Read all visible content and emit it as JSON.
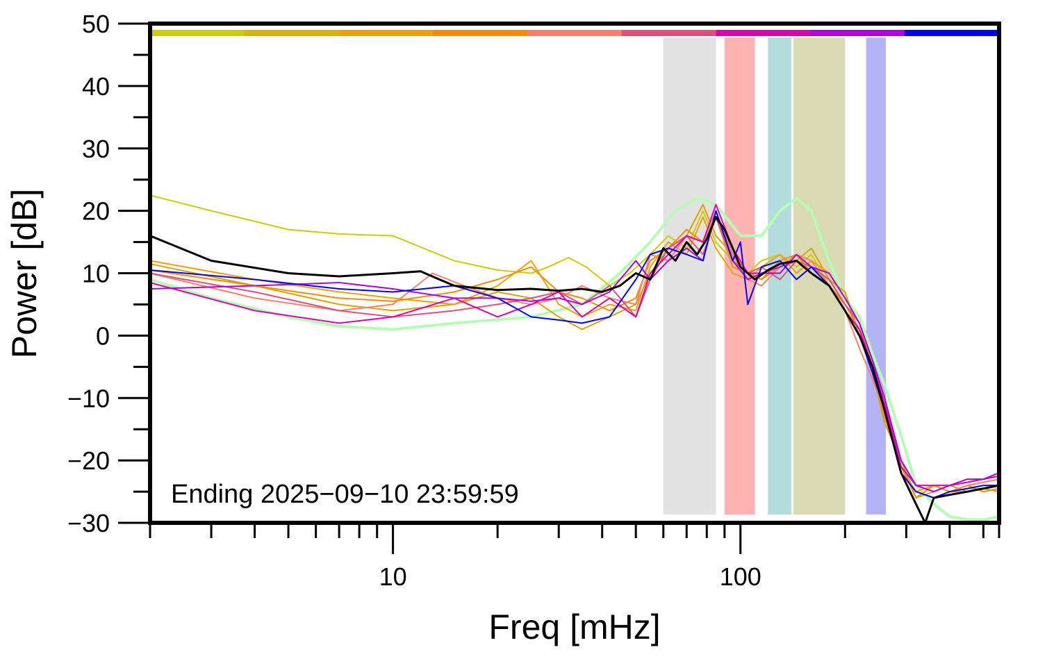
{
  "chart_data": {
    "type": "line",
    "xlabel": "Freq [mHz]",
    "ylabel": "Power [dB]",
    "xscale": "log",
    "xlim": [
      2,
      555
    ],
    "ylim": [
      -30,
      50
    ],
    "x_tick_labels": [
      {
        "value": 10,
        "label": "10"
      },
      {
        "value": 100,
        "label": "100"
      }
    ],
    "y_tick_labels": [
      {
        "value": 50,
        "label": "50"
      },
      {
        "value": 40,
        "label": "40"
      },
      {
        "value": 30,
        "label": "30"
      },
      {
        "value": 20,
        "label": "20"
      },
      {
        "value": 10,
        "label": "10"
      },
      {
        "value": 0,
        "label": "0"
      },
      {
        "value": -10,
        "label": "−10"
      },
      {
        "value": -20,
        "label": "−20"
      },
      {
        "value": -30,
        "label": "−30"
      }
    ],
    "annotation": "Ending 2025−09−10 23:59:59",
    "grid": false,
    "legend": "none",
    "top_color_bar": [
      "#cccc00",
      "#d9b300",
      "#f0a000",
      "#f58c00",
      "#ff7f66",
      "#e0507a",
      "#e000b0",
      "#b000e0",
      "#0000ff"
    ],
    "shaded_bands": [
      {
        "from": 60,
        "to": 85,
        "color": "#e2e2e2"
      },
      {
        "from": 90,
        "to": 110,
        "color": "#ffb3b3"
      },
      {
        "from": 120,
        "to": 140,
        "color": "#b3dcdc"
      },
      {
        "from": 142,
        "to": 200,
        "color": "#dadab3"
      },
      {
        "from": 230,
        "to": 262,
        "color": "#b3b3f5"
      }
    ],
    "series": [
      {
        "color": "#b3ffb3",
        "width": 4,
        "x": [
          2,
          3,
          5,
          7,
          10,
          15,
          25,
          35,
          45,
          55,
          65,
          75,
          85,
          100,
          115,
          130,
          145,
          160,
          180,
          200,
          220,
          240,
          260,
          290,
          320,
          360,
          400,
          450,
          500,
          555
        ],
        "y": [
          9,
          6,
          3,
          1.5,
          1,
          2,
          3,
          5,
          10,
          15,
          20,
          22,
          21,
          16,
          16,
          20,
          22,
          20,
          12,
          6,
          3,
          -3,
          -8,
          -16,
          -24,
          -27,
          -29,
          -29.5,
          -29.5,
          -29
        ]
      },
      {
        "color": "#cccc00",
        "width": 2,
        "x": [
          2,
          3,
          5,
          7,
          10,
          15,
          20,
          25,
          28,
          32,
          36,
          42,
          48,
          55,
          62,
          70,
          78,
          85,
          95,
          105,
          115,
          130,
          145,
          160,
          180,
          200,
          220,
          240,
          260,
          290,
          320,
          360,
          400,
          450,
          500,
          555
        ],
        "y": [
          22.5,
          20,
          17,
          16.3,
          16,
          12,
          10.5,
          10,
          11,
          12.5,
          11,
          8,
          10,
          13,
          16,
          14,
          20,
          15,
          12,
          10,
          12,
          13,
          11,
          13,
          8,
          5,
          1,
          -5,
          -13,
          -21,
          -25,
          -26,
          -25,
          -24.5,
          -24.5,
          -24
        ]
      },
      {
        "color": "#d9a300",
        "width": 2,
        "x": [
          2,
          4,
          7,
          10,
          15,
          20,
          25,
          30,
          35,
          42,
          50,
          55,
          62,
          70,
          78,
          85,
          95,
          105,
          115,
          130,
          145,
          160,
          180,
          200,
          220,
          240,
          260,
          290,
          320,
          360,
          400,
          450,
          500,
          555
        ],
        "y": [
          11.5,
          8,
          5,
          4,
          5,
          7,
          6,
          3,
          1,
          3,
          5,
          10,
          14,
          16,
          21,
          16,
          13,
          10,
          9,
          11,
          12,
          14,
          9,
          7,
          0,
          -6,
          -14,
          -20,
          -26,
          -25,
          -24,
          -25,
          -24.5,
          -25
        ]
      },
      {
        "color": "#f0a000",
        "width": 2,
        "x": [
          2,
          4,
          7,
          10,
          15,
          20,
          25,
          30,
          35,
          42,
          50,
          55,
          62,
          70,
          78,
          85,
          95,
          105,
          115,
          130,
          145,
          160,
          180,
          200,
          220,
          240,
          260,
          290,
          320,
          360,
          400,
          450,
          500,
          555
        ],
        "y": [
          12,
          9,
          7,
          6,
          5,
          8,
          12,
          5,
          3,
          5,
          4,
          11,
          15,
          13,
          19,
          14,
          10,
          9,
          11,
          13,
          10,
          12,
          10,
          6,
          2,
          -5,
          -12,
          -22,
          -25,
          -24,
          -25,
          -25,
          -24.5,
          -24
        ]
      },
      {
        "color": "#f58c00",
        "width": 2,
        "x": [
          2,
          4,
          7,
          10,
          15,
          20,
          25,
          30,
          35,
          42,
          50,
          55,
          62,
          70,
          78,
          85,
          95,
          105,
          115,
          130,
          145,
          160,
          180,
          200,
          220,
          240,
          260,
          290,
          320,
          360,
          400,
          450,
          500,
          555
        ],
        "y": [
          10.5,
          8,
          6,
          5.5,
          7,
          9,
          11,
          7,
          6,
          4,
          6,
          12,
          14,
          17,
          15,
          19,
          11,
          10,
          9,
          12,
          13,
          10,
          8,
          5,
          1,
          -6,
          -13,
          -21,
          -26,
          -24,
          -25,
          -24,
          -25,
          -24.5
        ]
      },
      {
        "color": "#ff7f66",
        "width": 2,
        "x": [
          2,
          4,
          7,
          10,
          13,
          16,
          20,
          25,
          30,
          35,
          42,
          50,
          55,
          62,
          70,
          78,
          85,
          95,
          105,
          115,
          130,
          145,
          160,
          180,
          200,
          220,
          240,
          260,
          290,
          320,
          360,
          400,
          450,
          500,
          555
        ],
        "y": [
          10,
          6,
          4,
          5,
          10,
          8,
          6,
          5,
          6,
          8,
          6,
          5,
          13,
          12,
          16,
          15,
          20,
          13,
          9,
          8,
          11,
          13,
          12,
          8,
          4,
          -2,
          -7,
          -12,
          -22,
          -25,
          -26,
          -25,
          -24,
          -23.5,
          -23
        ]
      },
      {
        "color": "#e0507a",
        "width": 2,
        "x": [
          2,
          4,
          7,
          10,
          15,
          20,
          25,
          30,
          35,
          42,
          50,
          55,
          62,
          70,
          78,
          85,
          95,
          105,
          115,
          130,
          145,
          160,
          180,
          200,
          220,
          240,
          260,
          290,
          320,
          360,
          400,
          450,
          500,
          555
        ],
        "y": [
          10,
          7,
          4,
          3,
          4,
          5,
          6,
          7,
          5,
          8,
          3,
          9,
          14,
          16,
          13,
          19,
          12,
          10,
          11,
          9,
          12,
          11,
          9,
          5,
          2,
          -4,
          -11,
          -20,
          -24,
          -25,
          -24,
          -23.5,
          -23,
          -22.5
        ]
      },
      {
        "color": "#e000b0",
        "width": 2,
        "x": [
          2,
          4,
          7,
          10,
          15,
          20,
          25,
          30,
          35,
          42,
          50,
          55,
          62,
          70,
          78,
          85,
          95,
          105,
          115,
          130,
          145,
          160,
          180,
          200,
          220,
          240,
          260,
          290,
          320,
          360,
          400,
          450,
          500,
          555
        ],
        "y": [
          8.5,
          4,
          2,
          3,
          6,
          3,
          5,
          7,
          3,
          6,
          3,
          10,
          13,
          16,
          15,
          21,
          14,
          10,
          10,
          11,
          12,
          10,
          8,
          4,
          1,
          -5,
          -11,
          -21,
          -24,
          -24,
          -24,
          -23.5,
          -23,
          -22.5
        ]
      },
      {
        "color": "#b000e0",
        "width": 2,
        "x": [
          2,
          4,
          7,
          10,
          15,
          20,
          25,
          30,
          35,
          42,
          50,
          55,
          62,
          70,
          78,
          85,
          95,
          105,
          115,
          130,
          145,
          160,
          180,
          200,
          220,
          240,
          260,
          290,
          320,
          360,
          400,
          450,
          500,
          555
        ],
        "y": [
          7.5,
          8,
          8.5,
          7.5,
          6,
          6,
          5.5,
          6,
          5,
          7,
          12,
          9,
          12,
          14,
          12,
          20,
          12,
          9,
          10,
          10,
          13,
          11,
          10,
          6,
          2,
          -4,
          -10,
          -20,
          -24,
          -25,
          -24,
          -23,
          -23,
          -22
        ]
      },
      {
        "color": "#0000ff",
        "width": 2,
        "x": [
          2,
          4,
          7,
          10,
          15,
          20,
          25,
          30,
          35,
          42,
          50,
          55,
          62,
          70,
          78,
          85,
          95,
          100,
          105,
          115,
          130,
          145,
          160,
          180,
          200,
          220,
          240,
          260,
          290,
          320,
          360,
          400,
          450,
          500,
          555
        ],
        "y": [
          10.5,
          9,
          7.5,
          7,
          8,
          6,
          3,
          2.5,
          2,
          3,
          9,
          13,
          14,
          13,
          12,
          20,
          12,
          15,
          5,
          11,
          12,
          9,
          11,
          8,
          4,
          0,
          -6,
          -12,
          -22,
          -25,
          -26,
          -25,
          -24.5,
          -24,
          -24
        ]
      },
      {
        "color": "#000000",
        "width": 3,
        "x": [
          2,
          3,
          5,
          7,
          10,
          12,
          15,
          20,
          25,
          30,
          35,
          40,
          45,
          50,
          55,
          60,
          65,
          70,
          75,
          80,
          85,
          90,
          95,
          100,
          105,
          110,
          120,
          130,
          145,
          160,
          180,
          200,
          220,
          240,
          260,
          290,
          320,
          340,
          360,
          400,
          450,
          500,
          555
        ],
        "y": [
          16,
          12,
          10,
          9.5,
          10,
          10.3,
          8,
          7.3,
          7.5,
          7.2,
          7.5,
          7,
          8,
          10,
          9,
          14,
          12,
          15,
          13,
          15.5,
          19,
          17,
          14,
          11,
          10,
          9,
          10.5,
          11.5,
          12,
          10,
          8,
          4,
          0,
          -5,
          -12,
          -22,
          -27,
          -30,
          -26,
          -25.5,
          -25,
          -24.5,
          -24
        ]
      }
    ]
  }
}
